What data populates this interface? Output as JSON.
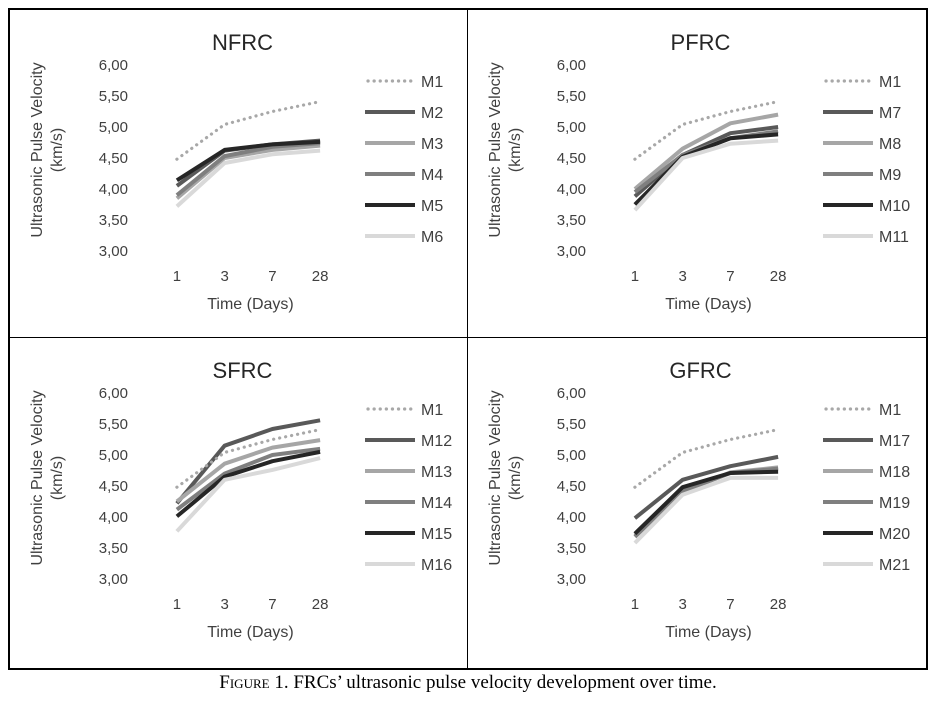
{
  "caption": {
    "figure_label": "Figure 1.",
    "text": "FRCs’ ultrasonic pulse velocity development over time."
  },
  "series_styles": {
    "M1": {
      "color": "#a8a8a8",
      "dash": "dotted"
    },
    "s2": {
      "color": "#595959"
    },
    "s3": {
      "color": "#a6a6a6"
    },
    "s4": {
      "color": "#7f7f7f"
    },
    "s5": {
      "color": "#262626"
    },
    "s6": {
      "color": "#d9d9d9"
    }
  },
  "chart_data": [
    {
      "type": "line",
      "title": "NFRC",
      "xlabel": "Time (Days)",
      "ylabel": "Ultrasonic Pulse Velocity (km/s)",
      "categories": [
        "1",
        "3",
        "7",
        "28"
      ],
      "ylim": [
        3.0,
        6.0
      ],
      "yticks": [
        "3,00",
        "3,50",
        "4,00",
        "4,50",
        "5,00",
        "5,50",
        "6,00"
      ],
      "legend_position": "right",
      "grid": false,
      "series": [
        {
          "name": "M1",
          "values": [
            4.48,
            5.04,
            5.25,
            5.41
          ]
        },
        {
          "name": "M2",
          "values": [
            4.05,
            4.62,
            4.72,
            4.78
          ]
        },
        {
          "name": "M3",
          "values": [
            3.85,
            4.5,
            4.63,
            4.7
          ]
        },
        {
          "name": "M4",
          "values": [
            3.9,
            4.53,
            4.68,
            4.74
          ]
        },
        {
          "name": "M5",
          "values": [
            4.14,
            4.63,
            4.72,
            4.76
          ]
        },
        {
          "name": "M6",
          "values": [
            3.72,
            4.42,
            4.56,
            4.62
          ]
        }
      ]
    },
    {
      "type": "line",
      "title": "PFRC",
      "xlabel": "Time (Days)",
      "ylabel": "Ultrasonic Pulse Velocity (km/s)",
      "categories": [
        "1",
        "3",
        "7",
        "28"
      ],
      "ylim": [
        3.0,
        6.0
      ],
      "yticks": [
        "3,00",
        "3,50",
        "4,00",
        "4,50",
        "5,00",
        "5,50",
        "6,00"
      ],
      "legend_position": "right",
      "grid": false,
      "series": [
        {
          "name": "M1",
          "values": [
            4.48,
            5.04,
            5.25,
            5.41
          ]
        },
        {
          "name": "M7",
          "values": [
            3.88,
            4.55,
            4.9,
            5.0
          ]
        },
        {
          "name": "M8",
          "values": [
            4.0,
            4.65,
            5.06,
            5.2
          ]
        },
        {
          "name": "M9",
          "values": [
            3.95,
            4.55,
            4.82,
            4.93
          ]
        },
        {
          "name": "M10",
          "values": [
            3.75,
            4.52,
            4.82,
            4.88
          ]
        },
        {
          "name": "M11",
          "values": [
            3.66,
            4.5,
            4.73,
            4.78
          ]
        }
      ]
    },
    {
      "type": "line",
      "title": "SFRC",
      "xlabel": "Time (Days)",
      "ylabel": "Ultrasonic Pulse Velocity (km/s)",
      "categories": [
        "1",
        "3",
        "7",
        "28"
      ],
      "ylim": [
        3.0,
        6.0
      ],
      "yticks": [
        "3,00",
        "3,50",
        "4,00",
        "4,50",
        "5,00",
        "5,50",
        "6,00"
      ],
      "legend_position": "right",
      "grid": false,
      "series": [
        {
          "name": "M1",
          "values": [
            4.48,
            5.04,
            5.25,
            5.41
          ]
        },
        {
          "name": "M12",
          "values": [
            4.22,
            5.15,
            5.42,
            5.56
          ]
        },
        {
          "name": "M13",
          "values": [
            4.25,
            4.86,
            5.12,
            5.24
          ]
        },
        {
          "name": "M14",
          "values": [
            4.12,
            4.7,
            5.0,
            5.1
          ]
        },
        {
          "name": "M15",
          "values": [
            4.01,
            4.65,
            4.9,
            5.05
          ]
        },
        {
          "name": "M16",
          "values": [
            3.77,
            4.6,
            4.76,
            4.95
          ]
        }
      ]
    },
    {
      "type": "line",
      "title": "GFRC",
      "xlabel": "Time (Days)",
      "ylabel": "Ultrasonic Pulse Velocity (km/s)",
      "categories": [
        "1",
        "3",
        "7",
        "28"
      ],
      "ylim": [
        3.0,
        6.0
      ],
      "yticks": [
        "3,00",
        "3,50",
        "4,00",
        "4,50",
        "5,00",
        "5,50",
        "6,00"
      ],
      "legend_position": "right",
      "grid": false,
      "series": [
        {
          "name": "M1",
          "values": [
            4.48,
            5.04,
            5.25,
            5.41
          ]
        },
        {
          "name": "M17",
          "values": [
            3.98,
            4.6,
            4.82,
            4.97
          ]
        },
        {
          "name": "M18",
          "values": [
            3.7,
            4.4,
            4.72,
            4.8
          ]
        },
        {
          "name": "M19",
          "values": [
            3.68,
            4.42,
            4.71,
            4.78
          ]
        },
        {
          "name": "M20",
          "values": [
            3.73,
            4.48,
            4.71,
            4.73
          ]
        },
        {
          "name": "M21",
          "values": [
            3.58,
            4.36,
            4.63,
            4.63
          ]
        }
      ]
    }
  ]
}
